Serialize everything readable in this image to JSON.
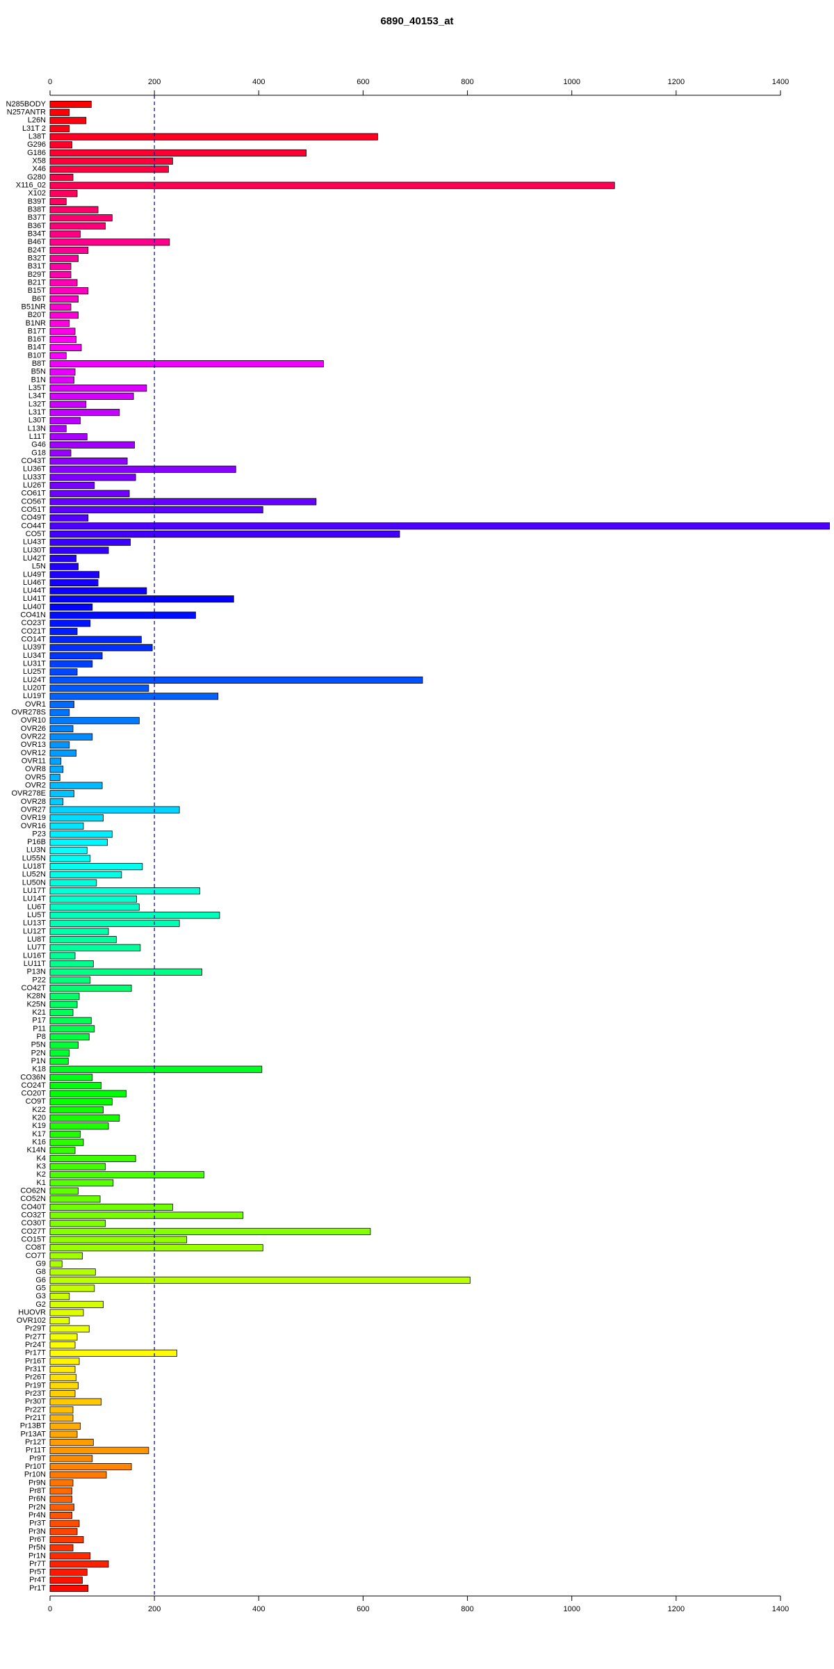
{
  "chart_data": {
    "type": "bar",
    "orientation": "horizontal",
    "title": "6890_40153_at",
    "categories": [
      "N285BODY",
      "N257ANTR",
      "L26N",
      "L31T 2",
      "L38T",
      "G296",
      "G186",
      "X58",
      "X46",
      "G280",
      "X116_02",
      "X102",
      "B39T",
      "B38T",
      "B37T",
      "B36T",
      "B34T",
      "B46T",
      "B24T",
      "B32T",
      "B31T",
      "B29T",
      "B21T",
      "B15T",
      "B6T",
      "B51NR",
      "B20T",
      "B1NR",
      "B17T",
      "B16T",
      "B14T",
      "B10T",
      "B8T",
      "B5N",
      "B1N",
      "L35T",
      "L34T",
      "L32T",
      "L31T",
      "L30T",
      "L13N",
      "L11T",
      "G46",
      "G18",
      "CO43T",
      "LU36T",
      "LU33T",
      "LU26T",
      "CO61T",
      "CO56T",
      "CO51T",
      "CO49T",
      "CO44T",
      "CO5T",
      "LU43T",
      "LU30T",
      "LU42T",
      "L5N",
      "LU49T",
      "LU46T",
      "LU44T",
      "LU41T",
      "LU40T",
      "CO41N",
      "CO23T",
      "CO21T",
      "CO14T",
      "LU39T",
      "LU34T",
      "LU31T",
      "LU25T",
      "LU24T",
      "LU20T",
      "LU19T",
      "OVR1",
      "OVR278S",
      "OVR10",
      "OVR26",
      "OVR22",
      "OVR13",
      "OVR12",
      "OVR11",
      "OVR8",
      "OVR5",
      "OVR2",
      "OVR278E",
      "OVR28",
      "OVR27",
      "OVR19",
      "OVR16",
      "P23",
      "P16B",
      "LU3N",
      "LU55N",
      "LU18T",
      "LU52N",
      "LU50N",
      "LU17T",
      "LU14T",
      "LU6T",
      "LU5T",
      "LU13T",
      "LU12T",
      "LU8T",
      "LU7T",
      "LU16T",
      "LU11T",
      "P13N",
      "P22",
      "CO42T",
      "K28N",
      "K25N",
      "K21",
      "P17",
      "P11",
      "P8",
      "P5N",
      "P2N",
      "P1N",
      "K18",
      "CO36N",
      "CO24T",
      "CO20T",
      "CO9T",
      "K22",
      "K20",
      "K19",
      "K17",
      "K16",
      "K14N",
      "K4",
      "K3",
      "K2",
      "K1",
      "CO62N",
      "CO52N",
      "CO40T",
      "CO32T",
      "CO30T",
      "CO27T",
      "CO15T",
      "CO8T",
      "CO7T",
      "G9",
      "G8",
      "G6",
      "G5",
      "G3",
      "G2",
      "HUOVR",
      "OVR102",
      "Pr29T",
      "Pr27T",
      "Pr24T",
      "Pr17T",
      "Pr16T",
      "Pr31T",
      "Pr26T",
      "Pr19T",
      "Pr23T",
      "Pr30T",
      "Pr22T",
      "Pr21T",
      "Pr13BT",
      "Pr13AT",
      "Pr12T",
      "Pr11T",
      "Pr9T",
      "Pr10T",
      "Pr10N",
      "Pr9N",
      "Pr8T",
      "Pr6N",
      "Pr2N",
      "Pr4N",
      "Pr3T",
      "Pr3N",
      "Pr6T",
      "Pr5N",
      "Pr1N",
      "Pr7T",
      "Pr5T",
      "Pr4T",
      "Pr1T"
    ],
    "values": [
      79,
      37,
      69,
      37,
      628,
      42,
      491,
      235,
      227,
      44,
      1082,
      52,
      31,
      92,
      119,
      106,
      58,
      229,
      73,
      54,
      40,
      40,
      52,
      73,
      54,
      40,
      54,
      37,
      48,
      50,
      60,
      31,
      524,
      48,
      46,
      185,
      160,
      69,
      133,
      58,
      31,
      71,
      162,
      40,
      148,
      356,
      164,
      85,
      152,
      510,
      408,
      73,
      1494,
      670,
      154,
      112,
      50,
      54,
      94,
      92,
      185,
      352,
      81,
      279,
      77,
      52,
      175,
      196,
      100,
      81,
      52,
      714,
      189,
      322,
      46,
      37,
      171,
      44,
      81,
      37,
      50,
      21,
      25,
      19,
      100,
      46,
      25,
      248,
      102,
      64,
      119,
      110,
      71,
      77,
      177,
      137,
      89,
      287,
      166,
      171,
      325,
      248,
      112,
      127,
      173,
      48,
      83,
      291,
      77,
      156,
      56,
      52,
      44,
      79,
      85,
      75,
      54,
      37,
      35,
      406,
      81,
      98,
      146,
      119,
      102,
      133,
      112,
      58,
      64,
      48,
      164,
      106,
      295,
      121,
      54,
      96,
      235,
      370,
      106,
      614,
      262,
      408,
      62,
      23,
      87,
      805,
      85,
      37,
      102,
      64,
      37,
      75,
      52,
      48,
      243,
      56,
      48,
      50,
      54,
      48,
      98,
      44,
      44,
      58,
      52,
      83,
      189,
      81,
      156,
      108,
      44,
      42,
      42,
      46,
      42,
      56,
      52,
      64,
      44,
      77,
      112,
      71,
      62,
      73
    ],
    "colors": [
      "hsl(0,100%,50%)",
      "hsl(358,100%,50%)",
      "hsl(356,100%,50%)",
      "hsl(354,100%,50%)",
      "hsl(352,100%,50%)",
      "hsl(350,100%,50%)",
      "hsl(348,100%,50%)",
      "hsl(346,100%,50%)",
      "hsl(344,100%,50%)",
      "hsl(342,100%,50%)",
      "hsl(340,100%,50%)",
      "hsl(338,100%,50%)",
      "hsl(337,100%,50%)",
      "hsl(335,100%,50%)",
      "hsl(333,100%,50%)",
      "hsl(331,100%,50%)",
      "hsl(329,100%,50%)",
      "hsl(327,100%,50%)",
      "hsl(325,100%,50%)",
      "hsl(323,100%,50%)",
      "hsl(321,100%,50%)",
      "hsl(319,100%,50%)",
      "hsl(317,100%,50%)",
      "hsl(315,100%,50%)",
      "hsl(313,100%,50%)",
      "hsl(311,100%,50%)",
      "hsl(309,100%,50%)",
      "hsl(307,100%,50%)",
      "hsl(305,100%,50%)",
      "hsl(303,100%,50%)",
      "hsl(301,100%,50%)",
      "hsl(299,100%,50%)",
      "hsl(297,100%,50%)",
      "hsl(295,100%,50%)",
      "hsl(293,100%,50%)",
      "hsl(292,100%,50%)",
      "hsl(290,100%,50%)",
      "hsl(288,100%,50%)",
      "hsl(286,100%,50%)",
      "hsl(284,100%,50%)",
      "hsl(282,100%,50%)",
      "hsl(280,100%,50%)",
      "hsl(278,100%,50%)",
      "hsl(276,100%,50%)",
      "hsl(274,100%,50%)",
      "hsl(272,100%,50%)",
      "hsl(270,100%,50%)",
      "hsl(268,100%,50%)",
      "hsl(266,100%,50%)",
      "hsl(264,100%,50%)",
      "hsl(262,100%,50%)",
      "hsl(260,100%,50%)",
      "hsl(258,100%,50%)",
      "hsl(256,100%,50%)",
      "hsl(254,100%,50%)",
      "hsl(252,100%,50%)",
      "hsl(250,100%,50%)",
      "hsl(248,100%,50%)",
      "hsl(247,100%,50%)",
      "hsl(245,100%,50%)",
      "hsl(243,100%,50%)",
      "hsl(241,100%,50%)",
      "hsl(239,100%,50%)",
      "hsl(237,100%,50%)",
      "hsl(235,100%,50%)",
      "hsl(233,100%,50%)",
      "hsl(231,100%,50%)",
      "hsl(229,100%,50%)",
      "hsl(227,100%,50%)",
      "hsl(225,100%,50%)",
      "hsl(223,100%,50%)",
      "hsl(221,100%,50%)",
      "hsl(219,100%,50%)",
      "hsl(217,100%,50%)",
      "hsl(215,100%,50%)",
      "hsl(213,100%,50%)",
      "hsl(211,100%,50%)",
      "hsl(209,100%,50%)",
      "hsl(207,100%,50%)",
      "hsl(205,100%,50%)",
      "hsl(203,100%,50%)",
      "hsl(202,100%,50%)",
      "hsl(200,100%,50%)",
      "hsl(198,100%,50%)",
      "hsl(196,100%,50%)",
      "hsl(194,100%,50%)",
      "hsl(192,100%,50%)",
      "hsl(190,100%,50%)",
      "hsl(188,100%,50%)",
      "hsl(186,100%,50%)",
      "hsl(184,100%,50%)",
      "hsl(182,100%,50%)",
      "hsl(180,100%,50%)",
      "hsl(178,100%,50%)",
      "hsl(176,100%,50%)",
      "hsl(174,100%,50%)",
      "hsl(172,100%,50%)",
      "hsl(170,100%,50%)",
      "hsl(168,100%,50%)",
      "hsl(166,100%,50%)",
      "hsl(164,100%,50%)",
      "hsl(162,100%,50%)",
      "hsl(160,100%,50%)",
      "hsl(158,100%,50%)",
      "hsl(157,100%,50%)",
      "hsl(155,100%,50%)",
      "hsl(153,100%,50%)",
      "hsl(151,100%,50%)",
      "hsl(149,100%,50%)",
      "hsl(147,100%,50%)",
      "hsl(145,100%,50%)",
      "hsl(143,100%,50%)",
      "hsl(141,100%,50%)",
      "hsl(139,100%,50%)",
      "hsl(137,100%,50%)",
      "hsl(135,100%,50%)",
      "hsl(133,100%,50%)",
      "hsl(131,100%,50%)",
      "hsl(129,100%,50%)",
      "hsl(127,100%,50%)",
      "hsl(125,100%,50%)",
      "hsl(123,100%,50%)",
      "hsl(121,100%,50%)",
      "hsl(119,100%,50%)",
      "hsl(117,100%,50%)",
      "hsl(115,100%,50%)",
      "hsl(113,100%,50%)",
      "hsl(112,100%,50%)",
      "hsl(110,100%,50%)",
      "hsl(108,100%,50%)",
      "hsl(106,100%,50%)",
      "hsl(104,100%,50%)",
      "hsl(102,100%,50%)",
      "hsl(100,100%,50%)",
      "hsl(98,100%,50%)",
      "hsl(96,100%,50%)",
      "hsl(94,100%,50%)",
      "hsl(92,100%,50%)",
      "hsl(90,100%,50%)",
      "hsl(88,100%,50%)",
      "hsl(86,100%,50%)",
      "hsl(84,100%,50%)",
      "hsl(82,100%,50%)",
      "hsl(80,100%,50%)",
      "hsl(78,100%,50%)",
      "hsl(76,100%,50%)",
      "hsl(74,100%,50%)",
      "hsl(72,100%,50%)",
      "hsl(70,100%,50%)",
      "hsl(68,100%,50%)",
      "hsl(67,100%,50%)",
      "hsl(65,100%,50%)",
      "hsl(63,100%,50%)",
      "hsl(61,100%,50%)",
      "hsl(59,100%,50%)",
      "hsl(57,100%,50%)",
      "hsl(55,100%,50%)",
      "hsl(53,100%,50%)",
      "hsl(51,100%,50%)",
      "hsl(49,100%,50%)",
      "hsl(47,100%,50%)",
      "hsl(45,100%,50%)",
      "hsl(43,100%,50%)",
      "hsl(41,100%,50%)",
      "hsl(39,100%,50%)",
      "hsl(37,100%,50%)",
      "hsl(35,100%,50%)",
      "hsl(33,100%,50%)",
      "hsl(31,100%,50%)",
      "hsl(29,100%,50%)",
      "hsl(27,100%,50%)",
      "hsl(25,100%,50%)",
      "hsl(23,100%,50%)",
      "hsl(22,100%,50%)",
      "hsl(20,100%,50%)",
      "hsl(18,100%,50%)",
      "hsl(16,100%,50%)",
      "hsl(14,100%,50%)",
      "hsl(12,100%,50%)",
      "hsl(10,100%,50%)",
      "hsl(8,100%,50%)",
      "hsl(6,100%,50%)",
      "hsl(4,100%,50%)",
      "hsl(2,100%,50%)"
    ],
    "xlim": [
      0,
      1400
    ],
    "xticks": [
      0,
      200,
      400,
      600,
      800,
      1000,
      1200,
      1400
    ],
    "reference_line": {
      "value": 200,
      "color": "#00008b",
      "dashed": true
    }
  }
}
